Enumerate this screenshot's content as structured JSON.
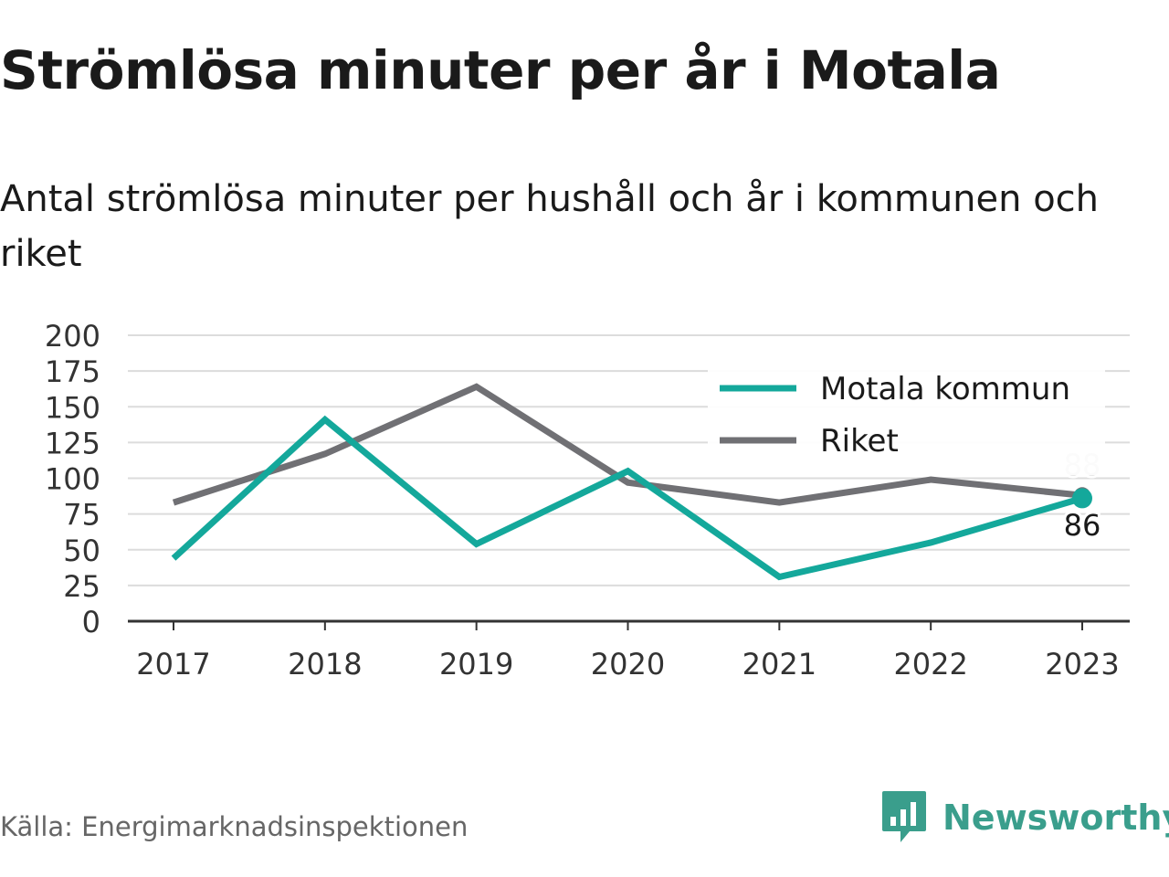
{
  "title": "Strömlösa minuter per år i Motala",
  "subtitle": "Antal strömlösa minuter per hushåll och år i kommunen och riket",
  "source": "Källa: Energimarknadsinspektionen",
  "brand": {
    "name": "Newsworthy",
    "icon": "newsworthy-logo-icon",
    "color": "#3a9e8c"
  },
  "chart_data": {
    "type": "line",
    "x": [
      "2017",
      "2018",
      "2019",
      "2020",
      "2021",
      "2022",
      "2023"
    ],
    "ylim": [
      0,
      200
    ],
    "yticks": [
      "0",
      "25",
      "50",
      "75",
      "100",
      "125",
      "150",
      "175",
      "200"
    ],
    "grid": true,
    "legend_position": "top-right",
    "series": [
      {
        "name": "Motala kommun",
        "color": "#14a89b",
        "values": [
          44,
          141,
          54,
          105,
          31,
          55,
          86
        ],
        "end_label": "86"
      },
      {
        "name": "Riket",
        "color": "#707074",
        "values": [
          83,
          117,
          164,
          97,
          83,
          99,
          88
        ],
        "end_label": "88"
      }
    ]
  }
}
